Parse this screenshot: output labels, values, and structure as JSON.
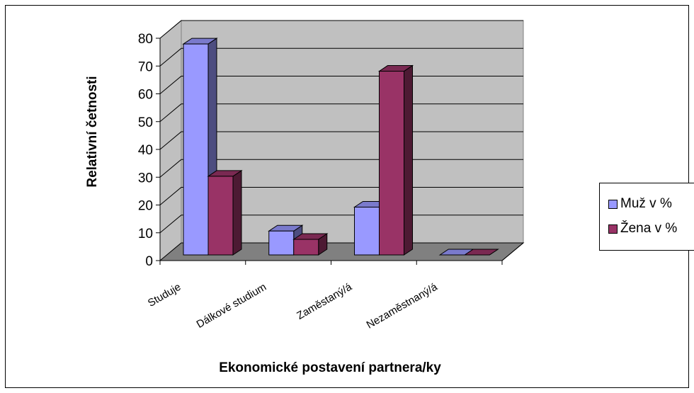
{
  "chart_data": {
    "type": "bar",
    "categories": [
      "Studuje",
      "Dálkové studium",
      "Zaměstaný/á",
      "Nezaměstnaný/á"
    ],
    "series": [
      {
        "name": "Muž v %",
        "values": [
          75.9,
          8.6,
          17.2,
          0
        ],
        "color": "#9999ff"
      },
      {
        "name": "Žena v %",
        "values": [
          28.3,
          5.6,
          66.1,
          0
        ],
        "color": "#993366"
      }
    ],
    "xlabel": "Ekonomické postavení partnera/ky",
    "ylabel": "Relativní četnosti",
    "ylim": [
      0,
      80
    ],
    "yticks": [
      "0",
      "10",
      "20",
      "30",
      "40",
      "50",
      "60",
      "70",
      "80"
    ],
    "grid": true,
    "legend_position": "right",
    "wall_color": "#c0c0c0",
    "floor_color": "#808080"
  }
}
